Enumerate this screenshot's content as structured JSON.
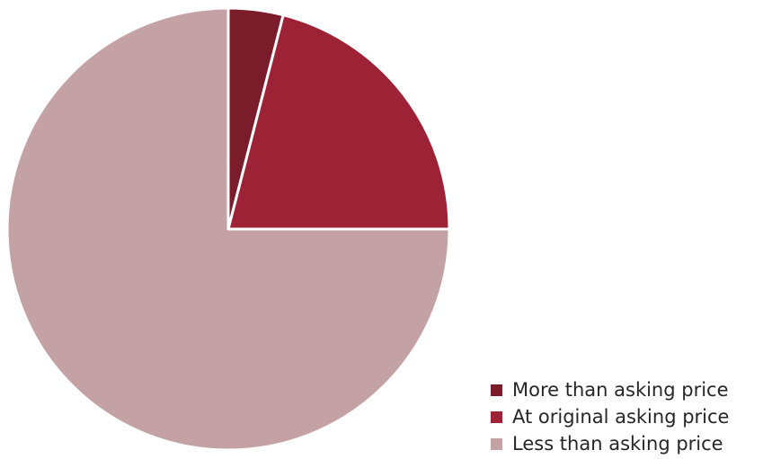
{
  "chart_data": {
    "type": "pie",
    "title": "",
    "categories": [
      "More than asking price",
      "At original asking price",
      "Less than asking price"
    ],
    "values": [
      4,
      21,
      75
    ],
    "colors": [
      "#7b1c2a",
      "#9e2236",
      "#c4a1a4"
    ],
    "start_angle_deg": 0,
    "direction": "clockwise",
    "legend_position": "bottom-right",
    "data_labels": false
  }
}
